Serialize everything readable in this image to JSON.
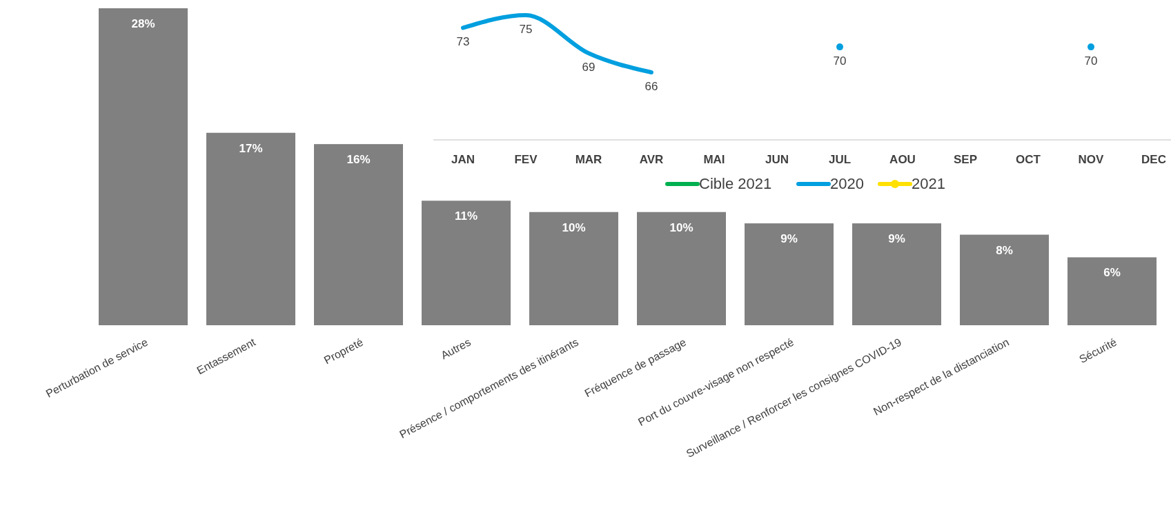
{
  "chart_data": [
    {
      "type": "bar",
      "categories": [
        "Perturbation de service",
        "Entassement",
        "Propreté",
        "Autres",
        "Présence / comportements des itinérants",
        "Fréquence de passage",
        "Port du couvre-visage non respecté",
        "Surveillance / Renforcer les consignes COVID-19",
        "Non-respect de la distanciation",
        "Sécurité"
      ],
      "values": [
        28,
        17,
        16,
        11,
        10,
        10,
        9,
        9,
        8,
        6
      ],
      "value_labels": [
        "28%",
        "17%",
        "16%",
        "11%",
        "10%",
        "10%",
        "9%",
        "9%",
        "8%",
        "6%"
      ],
      "color": "#808080",
      "ylim": [
        0,
        28
      ],
      "tick_labels": "x"
    },
    {
      "type": "line",
      "categories": [
        "JAN",
        "FEV",
        "MAR",
        "AVR",
        "MAI",
        "JUN",
        "JUL",
        "AOU",
        "SEP",
        "OCT",
        "NOV",
        "DEC"
      ],
      "tick_labels": "x",
      "data_labels": true,
      "legend": "bottom",
      "series": [
        {
          "name": "Cible 2021",
          "color": "#00b050",
          "values": [
            null,
            null,
            null,
            null,
            null,
            null,
            null,
            null,
            null,
            null,
            null,
            null
          ]
        },
        {
          "name": "2020",
          "color": "#009fdf",
          "values": [
            73,
            75,
            69,
            66,
            null,
            null,
            70,
            null,
            null,
            null,
            70,
            null
          ]
        },
        {
          "name": "2021",
          "color": "#ffe000",
          "marker": "circle",
          "values": [
            null,
            null,
            null,
            null,
            null,
            null,
            null,
            null,
            null,
            null,
            null,
            null
          ]
        }
      ]
    }
  ]
}
